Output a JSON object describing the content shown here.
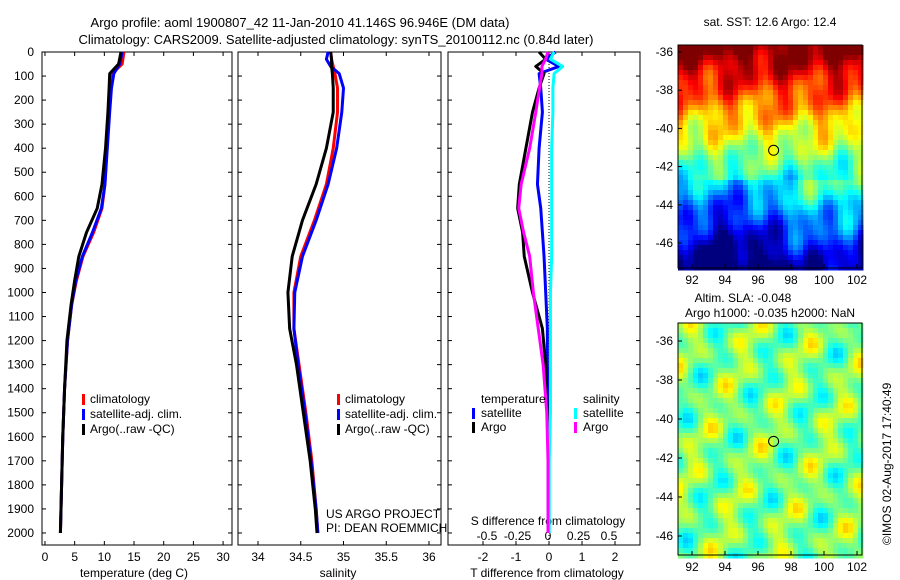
{
  "title_line1": "Argo profile: aoml 1900807_42 11-Jan-2010 41.146S 96.946E (DM data)",
  "title_line2": "Climatology: CARS2009. Satellite-adjusted climatology: synTS_20100112.nc (0.84d later)",
  "footer": "©IMOS 02-Aug-2017 17:40:49",
  "colors": {
    "climatology": "#ff0000",
    "satellite": "#0000ff",
    "argo": "#000000",
    "s_satellite": "#00ffff",
    "s_argo": "#ff00ff"
  },
  "chart_data": [
    {
      "type": "line",
      "name": "temperature-profile",
      "xlabel": "temperature (deg C)",
      "ylabel": "",
      "xlim": [
        -0.5,
        31.5
      ],
      "ylim": [
        2050,
        0
      ],
      "xticks": [
        "0",
        "5",
        "10",
        "15",
        "20",
        "25",
        "30"
      ],
      "yticks": [
        "0",
        "100",
        "200",
        "300",
        "400",
        "500",
        "600",
        "700",
        "800",
        "900",
        "1000",
        "1100",
        "1200",
        "1300",
        "1400",
        "1500",
        "1600",
        "1700",
        "1800",
        "1900",
        "2000"
      ],
      "legend": [
        "climatology",
        "satellite-adj. clim.",
        "Argo(..raw -QC)"
      ],
      "depth": [
        0,
        50,
        90,
        150,
        250,
        400,
        550,
        650,
        750,
        850,
        950,
        1050,
        1200,
        1400,
        1600,
        1800,
        2000
      ],
      "series": [
        {
          "name": "climatology",
          "values": [
            13.3,
            13.0,
            11.3,
            11.0,
            10.7,
            10.4,
            10.1,
            9.6,
            8.2,
            6.4,
            5.3,
            4.5,
            3.8,
            3.3,
            3.0,
            2.8,
            2.6
          ]
        },
        {
          "name": "satellite-adj. clim.",
          "values": [
            13.0,
            12.6,
            11.6,
            11.2,
            10.9,
            10.5,
            10.1,
            9.5,
            8.0,
            6.3,
            5.2,
            4.5,
            3.8,
            3.3,
            3.0,
            2.8,
            2.6
          ]
        },
        {
          "name": "Argo(..raw -QC)",
          "values": [
            12.8,
            12.4,
            10.9,
            10.8,
            10.6,
            10.2,
            9.6,
            8.8,
            7.0,
            5.7,
            5.0,
            4.4,
            3.7,
            3.3,
            3.0,
            2.8,
            2.6
          ]
        }
      ]
    },
    {
      "type": "line",
      "name": "salinity-profile",
      "xlabel": "salinity",
      "xlim": [
        33.77,
        36.15
      ],
      "ylim": [
        2050,
        0
      ],
      "xticks": [
        "34",
        "34.5",
        "35",
        "35.5",
        "36"
      ],
      "legend": [
        "climatology",
        "satellite-adj. clim.",
        "Argo(..raw -QC)"
      ],
      "annotation": [
        "US ARGO PROJECT",
        "PI: DEAN ROEMMICH"
      ],
      "depth": [
        0,
        30,
        60,
        90,
        150,
        250,
        400,
        550,
        700,
        850,
        1000,
        1150,
        1300,
        1500,
        1700,
        1900,
        2000
      ],
      "series": [
        {
          "name": "climatology",
          "values": [
            34.85,
            34.86,
            34.88,
            34.9,
            34.93,
            34.93,
            34.88,
            34.8,
            34.66,
            34.5,
            34.42,
            34.42,
            34.48,
            34.56,
            34.63,
            34.68,
            34.7
          ]
        },
        {
          "name": "satellite-adj. clim.",
          "values": [
            34.82,
            34.8,
            34.85,
            34.95,
            35.0,
            34.98,
            34.92,
            34.82,
            34.68,
            34.52,
            34.43,
            34.42,
            34.47,
            34.55,
            34.62,
            34.68,
            34.7
          ]
        },
        {
          "name": "Argo(..raw -QC)",
          "values": [
            34.85,
            34.86,
            34.86,
            34.87,
            34.88,
            34.88,
            34.8,
            34.68,
            34.52,
            34.4,
            34.35,
            34.37,
            34.45,
            34.53,
            34.61,
            34.67,
            34.69
          ]
        }
      ]
    },
    {
      "type": "line",
      "name": "difference-profile",
      "xlabel": "T difference from climatology",
      "x2label": "S difference from climatology",
      "xlim": [
        -2.0,
        2.8
      ],
      "ylim": [
        2050,
        0
      ],
      "xticks": [
        "-2",
        "-1",
        "0",
        "1",
        "2"
      ],
      "x2ticks": [
        "-0.5",
        "-0.25",
        "0",
        "0.25",
        "0.5"
      ],
      "legend_headers": [
        "temperature",
        "salinity"
      ],
      "legend": [
        "satellite",
        "Argo",
        "satellite",
        "Argo"
      ],
      "depth": [
        0,
        30,
        60,
        90,
        150,
        250,
        400,
        550,
        650,
        750,
        850,
        1000,
        1150,
        1300,
        1500,
        1700,
        2000
      ],
      "series": [
        {
          "name": "T satellite",
          "scale": "T",
          "values": [
            0.2,
            -0.1,
            0.3,
            -0.3,
            -0.25,
            -0.2,
            -0.3,
            -0.35,
            -0.25,
            -0.2,
            -0.15,
            -0.1,
            -0.05,
            -0.05,
            0,
            0,
            0
          ]
        },
        {
          "name": "T Argo",
          "scale": "T",
          "values": [
            -0.3,
            -0.1,
            -0.4,
            -0.15,
            -0.3,
            -0.5,
            -0.7,
            -0.9,
            -0.95,
            -0.8,
            -0.75,
            -0.5,
            -0.2,
            -0.1,
            -0.05,
            0,
            0
          ]
        },
        {
          "name": "S satellite",
          "scale": "S",
          "values": [
            0.05,
            0.02,
            0.12,
            0.05,
            0.04,
            0.04,
            0.03,
            0.03,
            0.03,
            0.03,
            0.03,
            0.02,
            0.02,
            0.02,
            0.02,
            0.01,
            0.01
          ]
        },
        {
          "name": "S Argo",
          "scale": "S",
          "values": [
            0.0,
            -0.02,
            -0.05,
            -0.05,
            -0.07,
            -0.1,
            -0.15,
            -0.22,
            -0.24,
            -0.2,
            -0.15,
            -0.12,
            -0.08,
            -0.04,
            -0.01,
            0.0,
            0.0
          ]
        }
      ]
    },
    {
      "type": "heatmap",
      "name": "sst-map",
      "title": "sat. SST: 12.6 Argo: 12.4",
      "xticks": [
        "92",
        "94",
        "96",
        "98",
        "100",
        "102"
      ],
      "yticks": [
        "-36",
        "-38",
        "-40",
        "-42",
        "-44",
        "-46"
      ],
      "marker": {
        "lon": 96.946,
        "lat": -41.146
      }
    },
    {
      "type": "heatmap",
      "name": "sla-map",
      "title_line1": "Altim. SLA: -0.048",
      "title_line2": "Argo h1000: -0.035 h2000: NaN",
      "xticks": [
        "92",
        "94",
        "96",
        "98",
        "100",
        "102"
      ],
      "yticks": [
        "-36",
        "-38",
        "-40",
        "-42",
        "-44",
        "-46"
      ],
      "marker": {
        "lon": 96.946,
        "lat": -41.146
      }
    }
  ]
}
